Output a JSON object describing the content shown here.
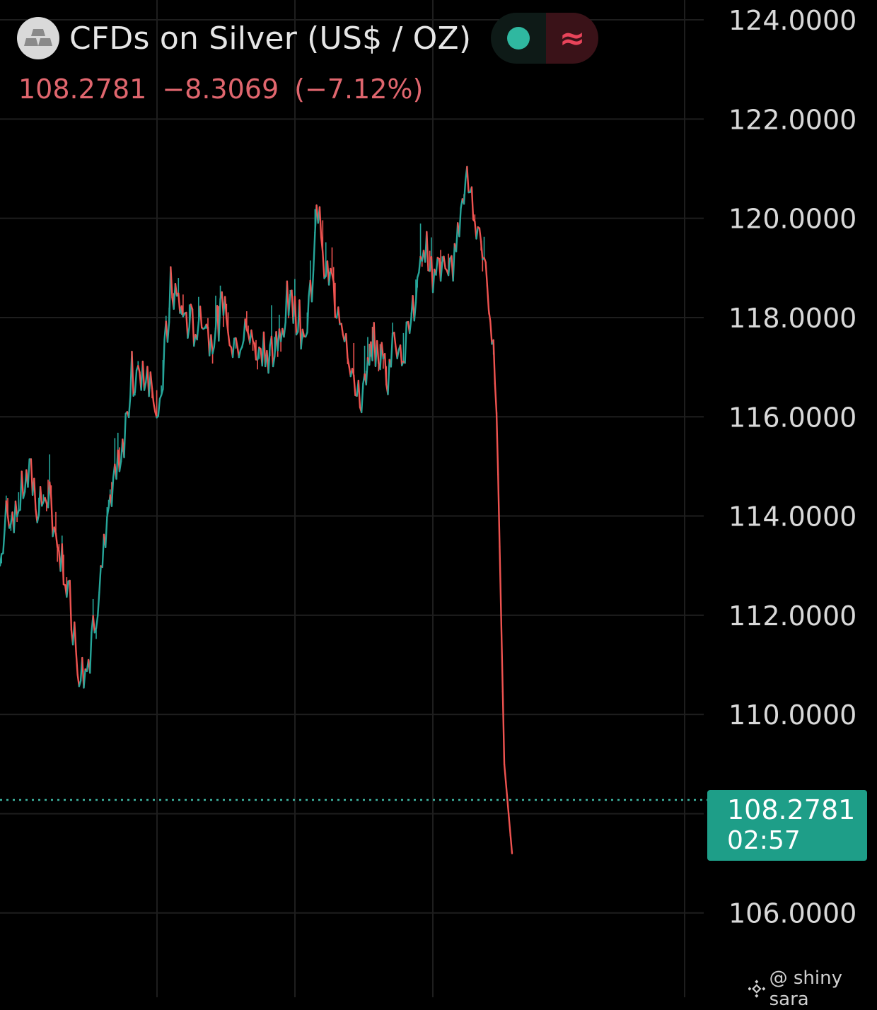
{
  "header": {
    "title": "CFDs on Silver (US$ / OZ)",
    "price": "108.2781",
    "change": "−8.3069",
    "change_pct": "(−7.12%)",
    "live_icon": "live-dot-icon",
    "wave_icon": "≈"
  },
  "price_box": {
    "price": "108.2781",
    "time": "02:57"
  },
  "watermark": {
    "text": "@ shiny sara",
    "icon": "binance-logo-icon"
  },
  "colors": {
    "background": "#000000",
    "grid": "#1e1e1e",
    "up": "#26a69a",
    "down": "#ef5350",
    "down_text": "#e0666e",
    "price_box": "#1e9e88",
    "live_dot": "#2fb8a0",
    "wave": "#e8445a"
  },
  "chart_data": {
    "type": "line",
    "title": "CFDs on Silver (US$ / OZ)",
    "xlabel": "",
    "ylabel": "",
    "ylim": [
      104.3,
      124.4
    ],
    "y_ticks": [
      106,
      108,
      110,
      112,
      114,
      116,
      118,
      120,
      122,
      124
    ],
    "y_tick_labels": [
      "106.0000",
      "108.0000",
      "110.0000",
      "112.0000",
      "114.0000",
      "116.0000",
      "118.0000",
      "120.0000",
      "122.0000",
      "124.0000"
    ],
    "y_axis_position": "right",
    "grid": true,
    "current_price": 108.2781,
    "series": [
      {
        "values": [
          113.0,
          114.2,
          113.9,
          114.6,
          114.8,
          114.1,
          114.5,
          113.9,
          113.1,
          112.4,
          111.0,
          110.8,
          111.6,
          112.9,
          113.8,
          114.8,
          115.3,
          116.9,
          116.6,
          117.0,
          116.2,
          116.8,
          118.6,
          118.3,
          118.0,
          117.8,
          118.2,
          117.6,
          117.9,
          118.3,
          117.6,
          117.5,
          117.8,
          117.4,
          117.5,
          117.2,
          117.5,
          118.3,
          118.2,
          117.7,
          118.4,
          120.2,
          119.0,
          118.5,
          118.1,
          117.4,
          116.3,
          116.6,
          117.5,
          117.3,
          116.9,
          117.6,
          117.2,
          117.9,
          118.7,
          119.4,
          118.7,
          119.2,
          118.8,
          119.5,
          121.0,
          120.4,
          119.1,
          118.5,
          116.3,
          109.0,
          107.2
        ]
      }
    ]
  }
}
